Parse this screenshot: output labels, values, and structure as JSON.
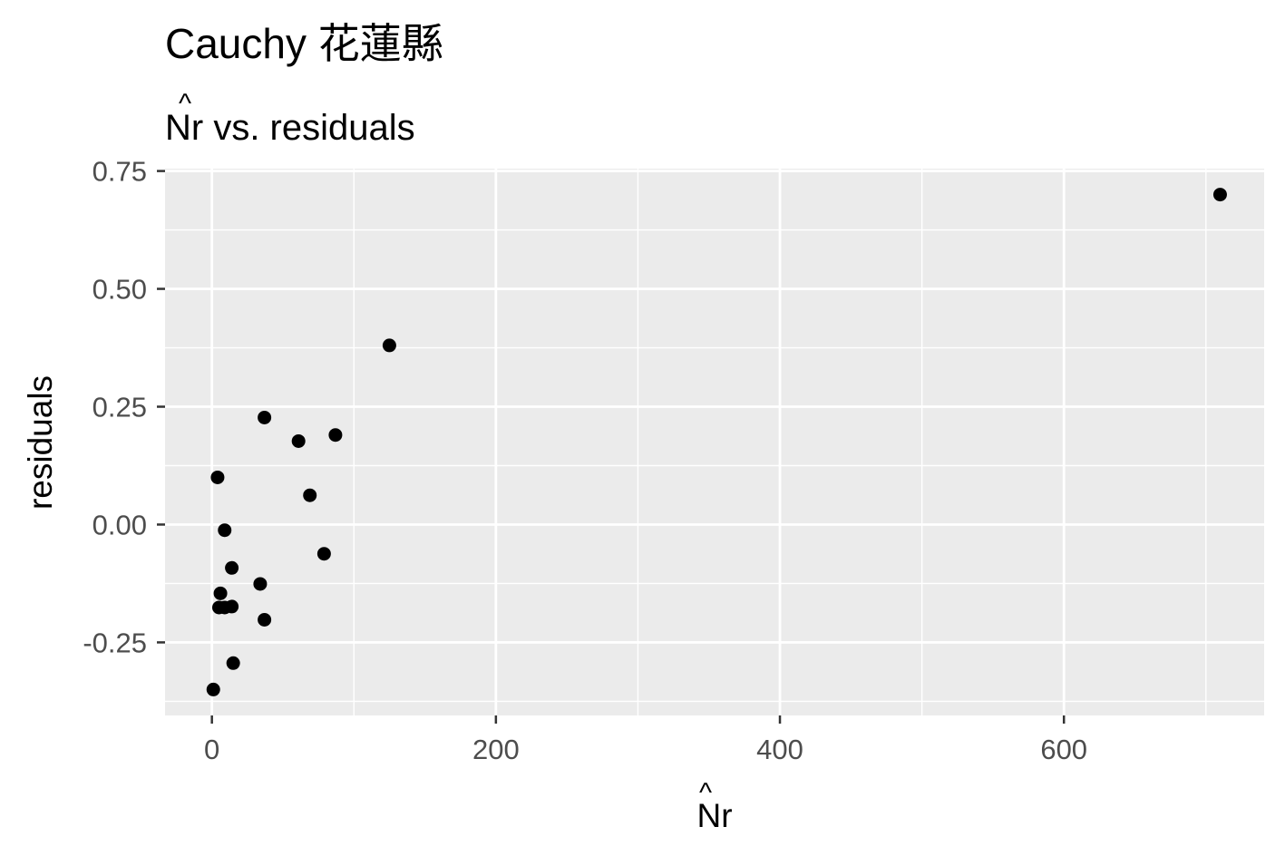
{
  "chart_data": {
    "type": "scatter",
    "title": "Cauchy 花蓮縣",
    "subtitle_hat": "^",
    "subtitle_main": "Nr vs. residuals",
    "xlabel_hat": "^",
    "xlabel_main": "Nr",
    "ylabel": "residuals",
    "xlim": [
      -33,
      741
    ],
    "ylim": [
      -0.405,
      0.755
    ],
    "x_major_ticks": [
      0,
      200,
      400,
      600
    ],
    "x_tick_labels": [
      "0",
      "200",
      "400",
      "600"
    ],
    "x_minor_ticks": [
      100,
      300,
      500,
      700
    ],
    "y_major_ticks": [
      -0.25,
      0.0,
      0.25,
      0.5,
      0.75
    ],
    "y_tick_labels": [
      "-0.25",
      "0.00",
      "0.25",
      "0.50",
      "0.75"
    ],
    "y_minor_ticks": [
      -0.375,
      -0.125,
      0.125,
      0.375,
      0.625
    ],
    "grid": true,
    "point_color": "#000000",
    "panel_background": "#ebebeb",
    "grid_color": "#ffffff",
    "points": [
      {
        "x": 710,
        "y": 0.7
      },
      {
        "x": 125,
        "y": 0.38
      },
      {
        "x": 37,
        "y": 0.227
      },
      {
        "x": 61,
        "y": 0.177
      },
      {
        "x": 87,
        "y": 0.19
      },
      {
        "x": 69,
        "y": 0.062
      },
      {
        "x": 79,
        "y": -0.062
      },
      {
        "x": 4,
        "y": 0.1
      },
      {
        "x": 9,
        "y": -0.012
      },
      {
        "x": 14,
        "y": -0.092
      },
      {
        "x": 34,
        "y": -0.126
      },
      {
        "x": 37,
        "y": -0.202
      },
      {
        "x": 6,
        "y": -0.146
      },
      {
        "x": 5,
        "y": -0.176
      },
      {
        "x": 9,
        "y": -0.176
      },
      {
        "x": 14,
        "y": -0.174
      },
      {
        "x": 15,
        "y": -0.294
      },
      {
        "x": 1,
        "y": -0.35
      }
    ]
  }
}
